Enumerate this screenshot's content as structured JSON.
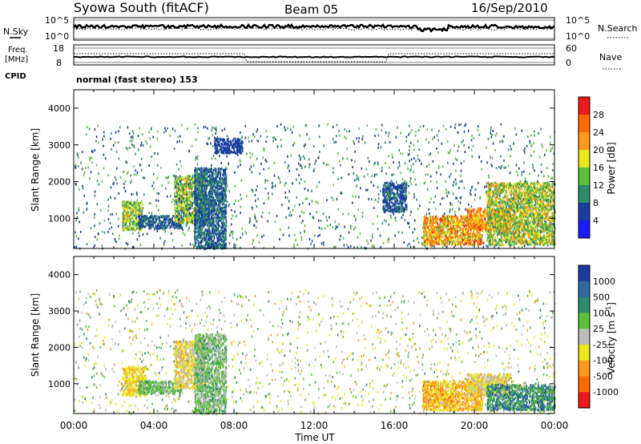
{
  "header": {
    "radar": "Syowa South (fitACF)",
    "beam": "Beam 05",
    "date": "16/Sep/2010"
  },
  "panels": {
    "nsky_label": "N.Sky",
    "nsearch_label": "N.Search",
    "nsky_ticks": [
      "10^5",
      "10^0"
    ],
    "nsearch_ticks": [
      "10^5",
      "10^0"
    ],
    "freq_label_1": "Freq.",
    "freq_label_2": "[MHz]",
    "freq_ticks": [
      "18",
      "8"
    ],
    "nave_label": "Nave",
    "nave_ticks": [
      "60",
      "0"
    ],
    "cpid_label": "CPID",
    "cpid_text": "normal (fast stereo) 153"
  },
  "colors": {
    "power": [
      "#1a1aff",
      "#1a3c9e",
      "#2e8a6a",
      "#5bbf3a",
      "#e8e81a",
      "#ff9a1a",
      "#ff6a00",
      "#ee1a1a"
    ],
    "velocity": [
      "#1a3c9e",
      "#2e6aa0",
      "#2e8a6a",
      "#5bbf3a",
      "#bbbbbb",
      "#e8e81a",
      "#ff9a1a",
      "#ff6a00",
      "#ee1a1a"
    ]
  },
  "chart_data": [
    {
      "type": "heatmap",
      "name": "power",
      "ylabel": "Slant Range [km]",
      "ylim": [
        180,
        4500
      ],
      "xlim": [
        0,
        24
      ],
      "yticks": [
        "1000",
        "2000",
        "3000",
        "4000"
      ],
      "colorbar_label": "Power [dB]",
      "colorbar_ticks": [
        "4",
        "8",
        "12",
        "16",
        "20",
        "24",
        "28"
      ],
      "regions": [
        {
          "t": [
            2.4,
            3.4
          ],
          "r": [
            700,
            1500
          ],
          "v": [
            8,
            22
          ]
        },
        {
          "t": [
            3.2,
            5.4
          ],
          "r": [
            750,
            1100
          ],
          "v": [
            4,
            10
          ]
        },
        {
          "t": [
            5.0,
            6.6
          ],
          "r": [
            900,
            2200
          ],
          "v": [
            6,
            22
          ]
        },
        {
          "t": [
            6.0,
            7.6
          ],
          "r": [
            200,
            2400
          ],
          "v": [
            4,
            12
          ]
        },
        {
          "t": [
            7.0,
            8.4
          ],
          "r": [
            2800,
            3200
          ],
          "v": [
            4,
            8
          ]
        },
        {
          "t": [
            15.4,
            16.6
          ],
          "r": [
            1200,
            2000
          ],
          "v": [
            4,
            10
          ]
        },
        {
          "t": [
            17.4,
            20.4
          ],
          "r": [
            300,
            1100
          ],
          "v": [
            14,
            30
          ]
        },
        {
          "t": [
            19.6,
            21.8
          ],
          "r": [
            700,
            1300
          ],
          "v": [
            16,
            30
          ]
        },
        {
          "t": [
            20.6,
            24.0
          ],
          "r": [
            300,
            2000
          ],
          "v": [
            8,
            24
          ]
        }
      ],
      "scatter": {
        "t": [
          0.0,
          24.0
        ],
        "r": [
          200,
          3600
        ],
        "v": [
          4,
          16
        ]
      }
    },
    {
      "type": "heatmap",
      "name": "velocity",
      "ylabel": "Slant Range [km]",
      "xlabel": "Time UT",
      "ylim": [
        180,
        4500
      ],
      "xlim": [
        0,
        24
      ],
      "yticks": [
        "1000",
        "2000",
        "3000",
        "4000"
      ],
      "xticks": [
        "00:00",
        "04:00",
        "08:00",
        "12:00",
        "16:00",
        "20:00",
        "00:00"
      ],
      "colorbar_label": "Velocity [m s",
      "colorbar_unit_exp": "-1",
      "colorbar_unit_close": "]",
      "colorbar_ticks": [
        "1000",
        "500",
        "100",
        "25",
        "-25",
        "-100",
        "-500",
        "-1000"
      ],
      "regions": [
        {
          "t": [
            2.4,
            3.6
          ],
          "r": [
            700,
            1500
          ],
          "v": [
            -500,
            -100
          ]
        },
        {
          "t": [
            3.2,
            5.4
          ],
          "r": [
            750,
            1100
          ],
          "v": [
            25,
            500
          ]
        },
        {
          "t": [
            5.0,
            6.6
          ],
          "r": [
            900,
            2200
          ],
          "v": [
            -500,
            100
          ]
        },
        {
          "t": [
            6.0,
            7.6
          ],
          "r": [
            200,
            2400
          ],
          "v": [
            -100,
            500
          ]
        },
        {
          "t": [
            17.4,
            20.4
          ],
          "r": [
            300,
            1100
          ],
          "v": [
            -800,
            -100
          ]
        },
        {
          "t": [
            19.6,
            21.8
          ],
          "r": [
            700,
            1300
          ],
          "v": [
            -500,
            100
          ]
        },
        {
          "t": [
            20.6,
            24.0
          ],
          "r": [
            300,
            1000
          ],
          "v": [
            100,
            1000
          ]
        }
      ],
      "scatter": {
        "t": [
          0.0,
          24.0
        ],
        "r": [
          200,
          3600
        ],
        "v": [
          -500,
          500
        ]
      }
    }
  ]
}
